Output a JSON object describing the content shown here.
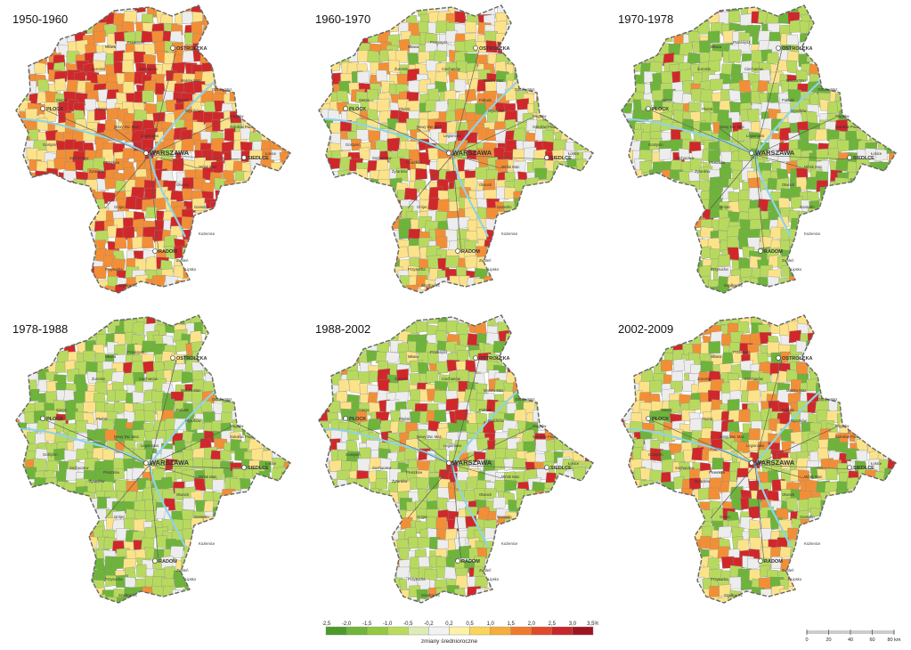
{
  "panels": [
    {
      "period": "1950-1960",
      "scheme": {
        "red": 0.22,
        "orange": 0.3,
        "yellow": 0.28,
        "white": 0.1,
        "lgreen": 0.1
      }
    },
    {
      "period": "1960-1970",
      "scheme": {
        "red": 0.08,
        "orange": 0.12,
        "yellow": 0.3,
        "white": 0.15,
        "lgreen": 0.3,
        "green": 0.05
      }
    },
    {
      "period": "1970-1978",
      "scheme": {
        "red": 0.04,
        "orange": 0.04,
        "yellow": 0.08,
        "white": 0.14,
        "lgreen": 0.45,
        "green": 0.25
      }
    },
    {
      "period": "1978-1988",
      "scheme": {
        "red": 0.03,
        "orange": 0.03,
        "yellow": 0.12,
        "white": 0.15,
        "lgreen": 0.5,
        "green": 0.17
      }
    },
    {
      "period": "1988-2002",
      "scheme": {
        "red": 0.06,
        "orange": 0.05,
        "yellow": 0.14,
        "white": 0.2,
        "lgreen": 0.45,
        "green": 0.1
      }
    },
    {
      "period": "2002-2009",
      "scheme": {
        "red": 0.08,
        "orange": 0.12,
        "yellow": 0.22,
        "white": 0.14,
        "lgreen": 0.34,
        "green": 0.1
      }
    }
  ],
  "cities": [
    "OSTROŁĘKA",
    "PŁOCK",
    "WARSZAWA",
    "SIEDLCE",
    "RADOM"
  ],
  "minor_places": [
    "Przasnysz",
    "Ciechanów",
    "Maków Maz.",
    "Pułtusk",
    "Wyszków",
    "Ostrów Maz.",
    "Sokołów Podl.",
    "Węgrów",
    "Mińsk Maz.",
    "Garwolin",
    "Grójec",
    "Pruszków",
    "Żyrardów",
    "Sochaczew",
    "Gostynin",
    "Sierpc",
    "Mława",
    "Łosice",
    "Zwoleń",
    "Lipsko",
    "Przysucha",
    "Szydłowiec",
    "Kozienice",
    "Otwock",
    "Legionowo",
    "Nowy Dw. Maz.",
    "Płońsk",
    "Żuromin"
  ],
  "legend": {
    "ticks": [
      "-2,5",
      "-2,0",
      "-1,5",
      "-1,0",
      "-0,5",
      "-0,2",
      "0,2",
      "0,5",
      "1,0",
      "1,5",
      "2,0",
      "2,5",
      "3,0",
      "3,5%"
    ],
    "colors": [
      "#4c9a2a",
      "#6fb53a",
      "#93c940",
      "#b9dc5c",
      "#dcecb4",
      "#f2f2f2",
      "#fdf0a8",
      "#fbd45a",
      "#f6ad3a",
      "#f07a2c",
      "#e04a2a",
      "#c8262a",
      "#9e1420"
    ],
    "caption": "zmiany średnioroczne"
  },
  "scale": {
    "ticks": [
      "0",
      "20",
      "40",
      "60",
      "80 km"
    ]
  }
}
